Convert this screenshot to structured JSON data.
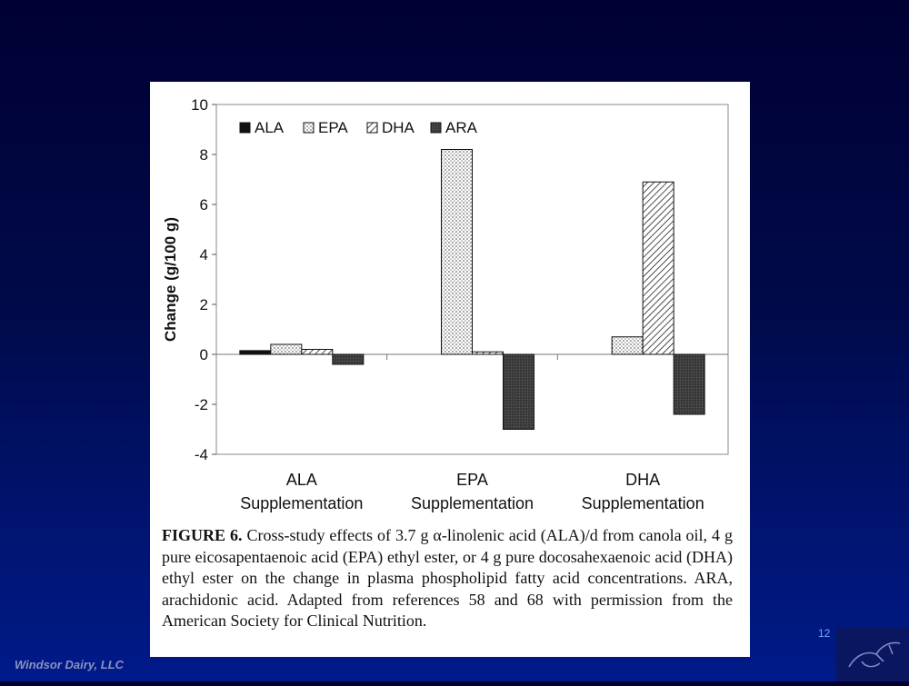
{
  "slide": {
    "number": "12",
    "footer": "Windsor Dairy, LLC"
  },
  "caption": {
    "label": "FIGURE 6.",
    "text": " Cross-study effects of 3.7 g α-linolenic acid (ALA)/d from canola oil, 4 g pure eicosapentaenoic acid (EPA) ethyl ester, or 4 g pure docosahexaenoic acid (DHA) ethyl ester on the change in plasma phospholipid fatty acid concentrations. ARA, arachidonic acid. Adapted from references 58 and 68 with permission from the American Society for Clinical Nutrition."
  },
  "colors": {
    "slide_top": "#000033",
    "slide_bottom": "#001a8a",
    "slide_number": "#6fa8ff",
    "footer": "#8a93c0"
  },
  "chart_data": {
    "type": "bar",
    "categories": [
      [
        "ALA",
        "Supplementation"
      ],
      [
        "EPA",
        "Supplementation"
      ],
      [
        "DHA",
        "Supplementation"
      ]
    ],
    "series": [
      {
        "name": "ALA",
        "pattern": "solid",
        "values": [
          0.15,
          0.0,
          0.0
        ]
      },
      {
        "name": "EPA",
        "pattern": "dots",
        "values": [
          0.4,
          8.2,
          0.7
        ]
      },
      {
        "name": "DHA",
        "pattern": "hatch",
        "values": [
          0.2,
          0.1,
          6.9
        ]
      },
      {
        "name": "ARA",
        "pattern": "dark",
        "values": [
          -0.4,
          -3.0,
          -2.4
        ]
      }
    ],
    "ylabel": "Change (g/100 g)",
    "ylim": [
      -4,
      10
    ],
    "yticks": [
      "-4",
      "-2",
      "0",
      "2",
      "4",
      "6",
      "8",
      "10"
    ],
    "legend_position": "top-left",
    "grid": false
  }
}
